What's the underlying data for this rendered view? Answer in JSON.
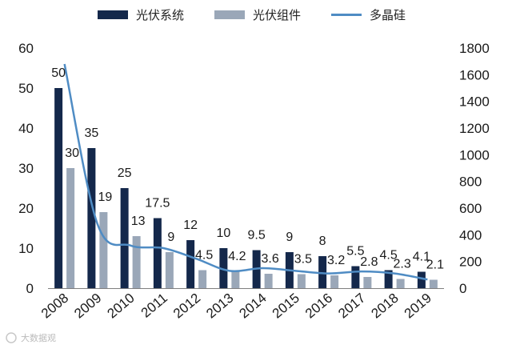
{
  "chart_data": {
    "type": "bar",
    "categories": [
      "2008",
      "2009",
      "2010",
      "2011",
      "2012",
      "2013",
      "2014",
      "2015",
      "2016",
      "2017",
      "2018",
      "2019"
    ],
    "series": [
      {
        "name": "光伏系统",
        "kind": "bar",
        "axis": "left",
        "color": "#14284b",
        "values": [
          50,
          35,
          25,
          17.5,
          12,
          10,
          9.5,
          9,
          8,
          5.5,
          4.5,
          4.1
        ],
        "labels": [
          "50",
          "35",
          "25",
          "17.5",
          "12",
          "10",
          "9.5",
          "9",
          "8",
          "5.5",
          "4.5",
          "4.1"
        ]
      },
      {
        "name": "光伏组件",
        "kind": "bar",
        "axis": "left",
        "color": "#9aa7b8",
        "values": [
          30,
          19,
          13,
          9,
          4.5,
          4.2,
          3.6,
          3.5,
          3.2,
          2.8,
          2.3,
          2.1
        ],
        "labels": [
          "30",
          "19",
          "13",
          "9",
          "4.5",
          "4.2",
          "3.6",
          "3.5",
          "3.2",
          "2.8",
          "2.3",
          "2.1"
        ]
      },
      {
        "name": "多晶硅",
        "kind": "line",
        "axis": "right",
        "color": "#4f8cc4",
        "values": [
          1680,
          480,
          320,
          300,
          220,
          130,
          150,
          130,
          110,
          125,
          110,
          65
        ]
      }
    ],
    "y_left": {
      "min": 0,
      "max": 60,
      "ticks": [
        "0",
        "10",
        "20",
        "30",
        "40",
        "50",
        "60"
      ]
    },
    "y_right": {
      "min": 0,
      "max": 1800,
      "ticks": [
        "0",
        "200",
        "400",
        "600",
        "800",
        "1000",
        "1200",
        "1400",
        "1600",
        "1800"
      ]
    },
    "legend_position": "top",
    "grid": false
  },
  "watermark": "大数据观"
}
